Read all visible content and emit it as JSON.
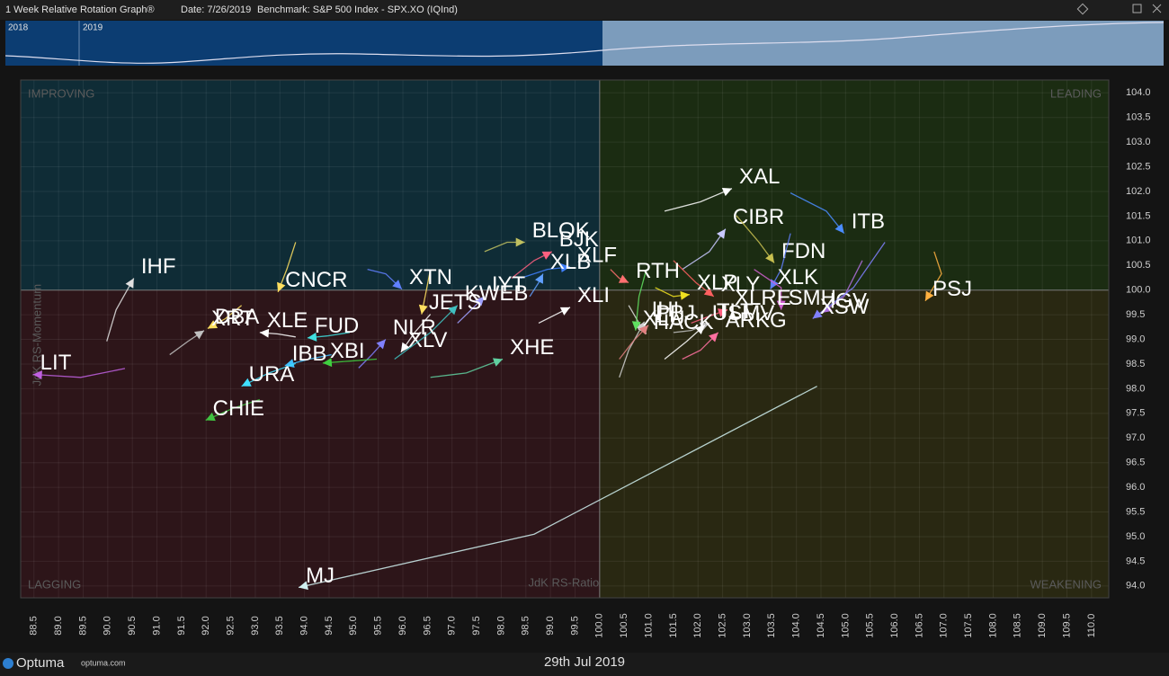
{
  "header": {
    "title": "1 Week Relative Rotation Graph®",
    "date": "Date: 7/26/2019",
    "benchmark": "Benchmark:  S&P 500 Index - SPX.XO (IQInd)"
  },
  "timeline": {
    "years": [
      "2018",
      "2019"
    ]
  },
  "footer": {
    "brand": "Optuma",
    "url": "optuma.com",
    "date": "29th Jul 2019"
  },
  "chart_data": {
    "type": "scatter",
    "x_label": "JdK RS-Ratio",
    "y_label": "JdK RS-Momentum",
    "quadrants": {
      "top_left": "IMPROVING",
      "top_right": "LEADING",
      "bottom_left": "LAGGING",
      "bottom_right": "WEAKENING"
    },
    "xlim": [
      88.23,
      110.35
    ],
    "ylim": [
      93.76,
      104.26
    ],
    "grid": true,
    "xticks": [
      88.5,
      {
        "value": 89,
        "label": "89.0"
      },
      89.5,
      {
        "value": 90,
        "label": "90.0"
      },
      90.5,
      {
        "value": 91,
        "label": "91.0"
      },
      91.5,
      {
        "value": 92,
        "label": "92.0"
      },
      92.5,
      {
        "value": 93,
        "label": "93.0"
      },
      93.5,
      {
        "value": 94,
        "label": "94.0"
      },
      94.5,
      {
        "value": 95,
        "label": "95.0"
      },
      95.5,
      {
        "value": 96,
        "label": "96.0"
      },
      96.5,
      {
        "value": 97,
        "label": "97.0"
      },
      97.5,
      {
        "value": 98,
        "label": "98.0"
      },
      98.5,
      {
        "value": 99,
        "label": "99.0"
      },
      99.5,
      {
        "value": 100,
        "label": "100.0"
      },
      100.5,
      {
        "value": 101,
        "label": "101.0"
      },
      101.5,
      {
        "value": 102,
        "label": "102.0"
      },
      102.5,
      {
        "value": 103,
        "label": "103.0"
      },
      103.5,
      {
        "value": 104,
        "label": "104.0"
      },
      104.5,
      {
        "value": 105,
        "label": "105.0"
      },
      105.5,
      {
        "value": 106,
        "label": "106.0"
      },
      106.5,
      {
        "value": 107,
        "label": "107.0"
      },
      107.5,
      {
        "value": 108,
        "label": "108.0"
      },
      108.5,
      {
        "value": 109,
        "label": "109.0"
      },
      109.5,
      {
        "value": 110,
        "label": "110.0"
      }
    ],
    "yticks": [
      {
        "value": 94,
        "label": "94.0"
      },
      94.5,
      {
        "value": 95,
        "label": "95.0"
      },
      95.5,
      {
        "value": 96,
        "label": "96.0"
      },
      96.5,
      {
        "value": 97,
        "label": "97.0"
      },
      97.5,
      {
        "value": 98,
        "label": "98.0"
      },
      98.5,
      {
        "value": 99,
        "label": "99.0"
      },
      99.5,
      {
        "value": 100,
        "label": "100.0"
      },
      100.5,
      {
        "value": 101,
        "label": "101.0"
      },
      101.5,
      {
        "value": 102,
        "label": "102.0"
      },
      102.5,
      {
        "value": 103,
        "label": "103.0"
      },
      103.5,
      {
        "value": 104,
        "label": "104.0"
      }
    ],
    "series": [
      {
        "name": "XAL",
        "color": "#ffffff",
        "x": [
          101.32,
          102.05,
          102.69
        ],
        "values": [
          101.6,
          101.79,
          102.06
        ]
      },
      {
        "name": "CIBR",
        "color": "#c8c8ff",
        "x": [
          101.68,
          102.23,
          102.56
        ],
        "values": [
          100.42,
          100.78,
          101.24
        ]
      },
      {
        "name": "FDN",
        "color": "#c8c050",
        "x": [
          102.78,
          103.24,
          103.55
        ],
        "values": [
          101.51,
          100.97,
          100.55
        ]
      },
      {
        "name": "XLK",
        "color": "#6080ff",
        "x": [
          103.88,
          103.69,
          103.47
        ],
        "values": [
          101.15,
          100.42,
          100.02
        ]
      },
      {
        "name": "ITB",
        "color": "#4a8cff",
        "x": [
          103.88,
          104.61,
          104.97
        ],
        "values": [
          101.97,
          101.6,
          101.15
        ]
      },
      {
        "name": "PSJ",
        "color": "#ffb040",
        "x": [
          106.8,
          106.95,
          106.62
        ],
        "values": [
          100.78,
          100.33,
          99.78
        ]
      },
      {
        "name": "IGV",
        "color": "#b070e0",
        "x": [
          105.34,
          104.97,
          104.53
        ],
        "values": [
          100.6,
          99.87,
          99.54
        ]
      },
      {
        "name": "XSW",
        "color": "#8080ff",
        "x": [
          105.8,
          105.16,
          104.33
        ],
        "values": [
          100.97,
          100.05,
          99.42
        ]
      },
      {
        "name": "SMH",
        "color": "#d060d0",
        "x": [
          103.14,
          103.69,
          103.69
        ],
        "values": [
          100.42,
          100.05,
          99.6
        ]
      },
      {
        "name": "ARKG",
        "color": "#ff70a0",
        "x": [
          101.68,
          102.05,
          102.41
        ],
        "values": [
          98.6,
          98.78,
          99.14
        ]
      },
      {
        "name": "XLRE",
        "color": "#ff6080",
        "x": [
          101.86,
          102.23,
          102.6
        ],
        "values": [
          99.33,
          99.47,
          99.6
        ]
      },
      {
        "name": "XLY",
        "color": "#ff6060",
        "x": [
          101.5,
          101.96,
          102.32
        ],
        "values": [
          100.6,
          100.15,
          99.87
        ]
      },
      {
        "name": "XLP",
        "color": "#f0e020",
        "x": [
          101.13,
          101.5,
          101.83
        ],
        "values": [
          100.05,
          99.87,
          99.91
        ]
      },
      {
        "name": "TLT",
        "color": "#c0c0c0",
        "x": [
          101.5,
          101.86,
          102.23
        ],
        "values": [
          99.14,
          99.18,
          99.33
        ]
      },
      {
        "name": "HACK",
        "color": "#e0e0e0",
        "x": [
          100.59,
          100.8,
          100.95
        ],
        "values": [
          99.69,
          99.33,
          99.11
        ]
      },
      {
        "name": "IHI",
        "color": "#d0d0d0",
        "x": [
          100.4,
          100.59,
          100.91
        ],
        "values": [
          98.23,
          98.78,
          99.36
        ]
      },
      {
        "name": "USMV",
        "color": "#ffffff",
        "x": [
          101.32,
          101.77,
          102.14
        ],
        "values": [
          98.6,
          98.96,
          99.29
        ]
      },
      {
        "name": "XLU",
        "color": "#60e060",
        "x": [
          100.95,
          100.8,
          100.73
        ],
        "values": [
          100.42,
          99.87,
          99.18
        ]
      },
      {
        "name": "XLI",
        "color": "#ffffff",
        "x": [
          98.76,
          99.12,
          99.4
        ],
        "values": [
          99.33,
          99.51,
          99.65
        ]
      },
      {
        "name": "PBJ",
        "color": "#e08080",
        "x": [
          100.4,
          100.68,
          100.99
        ],
        "values": [
          98.6,
          98.96,
          99.29
        ]
      },
      {
        "name": "RTH",
        "color": "#ff7070",
        "x": [
          100.22,
          100.4,
          100.59
        ],
        "values": [
          100.42,
          100.24,
          100.15
        ]
      },
      {
        "name": "XLF",
        "color": "#4080ff",
        "x": [
          98.39,
          98.94,
          99.4
        ],
        "values": [
          100.24,
          100.42,
          100.47
        ]
      },
      {
        "name": "XLB",
        "color": "#60a0ff",
        "x": [
          98.58,
          98.76,
          98.85
        ],
        "values": [
          99.87,
          100.15,
          100.33
        ]
      },
      {
        "name": "BLOK",
        "color": "#c0c060",
        "x": [
          97.66,
          98.12,
          98.48
        ],
        "values": [
          100.78,
          100.97,
          100.97
        ]
      },
      {
        "name": "BJK",
        "color": "#ff6080",
        "x": [
          98.21,
          98.67,
          99.03
        ],
        "values": [
          100.24,
          100.6,
          100.78
        ]
      },
      {
        "name": "IYT",
        "color": "#a0a0ff",
        "x": [
          97.11,
          97.39,
          97.66
        ],
        "values": [
          99.33,
          99.6,
          99.87
        ]
      },
      {
        "name": "JETS",
        "color": "#ffe060",
        "x": [
          96.56,
          96.47,
          96.38
        ],
        "values": [
          100.42,
          99.96,
          99.51
        ]
      },
      {
        "name": "XTN",
        "color": "#6080ff",
        "x": [
          95.28,
          95.65,
          95.98
        ],
        "values": [
          100.42,
          100.33,
          100.02
        ]
      },
      {
        "name": "XLV",
        "color": "#ffffff",
        "x": [
          96.56,
          96.24,
          95.96
        ],
        "values": [
          99.51,
          99.14,
          98.74
        ]
      },
      {
        "name": "KWEB",
        "color": "#40c0c0",
        "x": [
          95.83,
          96.56,
          97.11
        ],
        "values": [
          98.6,
          99.14,
          99.69
        ]
      },
      {
        "name": "XHE",
        "color": "#60d0a0",
        "x": [
          96.56,
          97.29,
          98.03
        ],
        "values": [
          98.23,
          98.32,
          98.6
        ]
      },
      {
        "name": "NLR",
        "color": "#8080ff",
        "x": [
          95.1,
          95.37,
          95.65
        ],
        "values": [
          98.42,
          98.69,
          99.0
        ]
      },
      {
        "name": "XBI",
        "color": "#40d040",
        "x": [
          95.47,
          94.92,
          94.37
        ],
        "values": [
          98.6,
          98.56,
          98.52
        ]
      },
      {
        "name": "FUD",
        "color": "#40e0e0",
        "x": [
          94.92,
          94.46,
          94.06
        ],
        "values": [
          99.14,
          99.07,
          99.03
        ]
      },
      {
        "name": "XLE",
        "color": "#ffffff",
        "x": [
          93.82,
          93.46,
          93.09
        ],
        "values": [
          99.05,
          99.11,
          99.14
        ]
      },
      {
        "name": "DBA",
        "color": "#ffe060",
        "x": [
          92.72,
          92.39,
          92.03
        ],
        "values": [
          99.69,
          99.42,
          99.22
        ]
      },
      {
        "name": "CNCR",
        "color": "#ffe060",
        "x": [
          93.82,
          93.64,
          93.46
        ],
        "values": [
          100.97,
          100.42,
          99.96
        ]
      },
      {
        "name": "XRT",
        "color": "#c0c0c0",
        "x": [
          91.26,
          91.63,
          91.96
        ],
        "values": [
          98.69,
          98.96,
          99.18
        ]
      },
      {
        "name": "IBB",
        "color": "#40c0ff",
        "x": [
          94.55,
          94.1,
          93.6
        ],
        "values": [
          98.69,
          98.6,
          98.47
        ]
      },
      {
        "name": "URA",
        "color": "#40e0ff",
        "x": [
          93.82,
          93.28,
          92.72
        ],
        "values": [
          98.51,
          98.32,
          98.05
        ]
      },
      {
        "name": "CHIE",
        "color": "#40c040",
        "x": [
          93.09,
          92.54,
          91.99
        ],
        "values": [
          97.78,
          97.6,
          97.36
        ]
      },
      {
        "name": "LIT",
        "color": "#c060e0",
        "x": [
          90.35,
          89.45,
          88.48
        ],
        "values": [
          98.41,
          98.23,
          98.29
        ]
      },
      {
        "name": "IHF",
        "color": "#e0e0e0",
        "x": [
          89.98,
          90.17,
          90.53
        ],
        "values": [
          98.96,
          99.6,
          100.24
        ]
      },
      {
        "name": "MJ",
        "color": "#d0f0f0",
        "x": [
          104.42,
          98.67,
          93.88
        ],
        "values": [
          98.05,
          95.05,
          93.97
        ]
      }
    ]
  }
}
